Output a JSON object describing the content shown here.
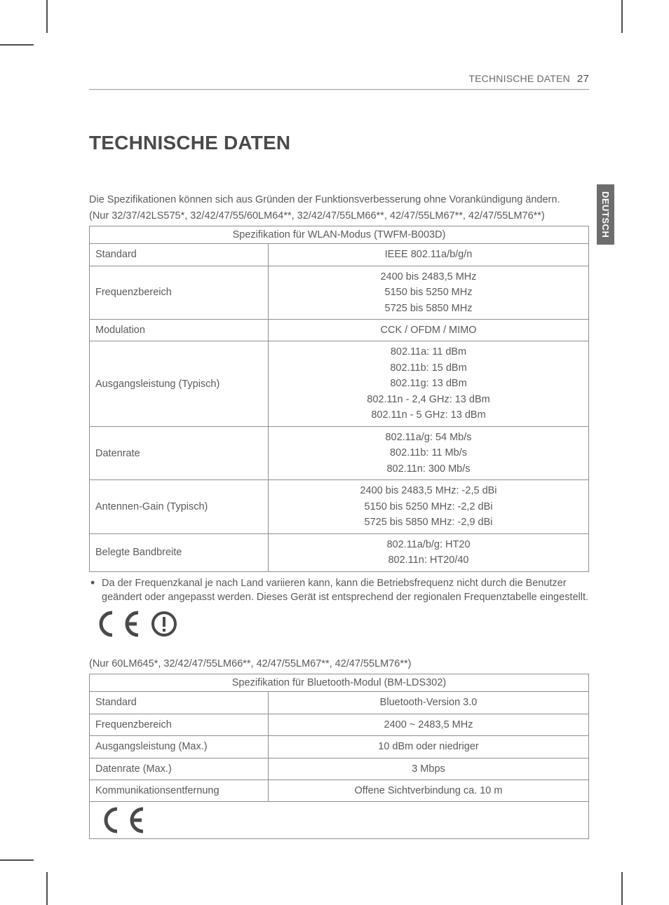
{
  "header": {
    "section": "TECHNISCHE DATEN",
    "page_number": "27"
  },
  "side_tab": "DEUTSCH",
  "title": "TECHNISCHE DATEN",
  "intro_line1": "Die Spezifikationen können sich aus Gründen der Funktionsverbesserung ohne Vorankündigung ändern.",
  "intro_line2": "(Nur 32/37/42LS575*, 32/42/47/55/60LM64**, 32/42/47/55LM66**, 42/47/55LM67**, 42/47/55LM76**)",
  "table1": {
    "caption": "Spezifikation für WLAN-Modus (TWFM-B003D)",
    "rows": [
      {
        "label": "Standard",
        "values": [
          "IEEE 802.11a/b/g/n"
        ]
      },
      {
        "label": "Frequenzbereich",
        "values": [
          "2400 bis 2483,5 MHz",
          "5150 bis 5250 MHz",
          "5725 bis 5850 MHz"
        ]
      },
      {
        "label": "Modulation",
        "values": [
          "CCK / OFDM / MIMO"
        ]
      },
      {
        "label": "Ausgangsleistung (Typisch)",
        "values": [
          "802.11a: 11 dBm",
          "802.11b: 15 dBm",
          "802.11g: 13 dBm",
          "802.11n - 2,4 GHz: 13 dBm",
          "802.11n - 5 GHz: 13 dBm"
        ]
      },
      {
        "label": "Datenrate",
        "values": [
          "802.11a/g: 54 Mb/s",
          "802.11b: 11 Mb/s",
          "802.11n: 300 Mb/s"
        ]
      },
      {
        "label": "Antennen-Gain (Typisch)",
        "values": [
          "2400 bis 2483,5 MHz: -2,5 dBi",
          "5150 bis 5250 MHz: -2,2 dBi",
          "5725 bis 5850 MHz: -2,9 dBi"
        ]
      },
      {
        "label": "Belegte Bandbreite",
        "values": [
          "802.11a/b/g: HT20",
          "802.11n: HT20/40"
        ]
      }
    ]
  },
  "note1": "Da der Frequenzkanal je nach Land variieren kann, kann die Betriebsfrequenz nicht durch die Benutzer geändert oder angepasst werden. Dieses Gerät ist entsprechend der regionalen Frequenztabelle eingestellt.",
  "intro2": "(Nur 60LM645*, 32/42/47/55LM66**, 42/47/55LM67**, 42/47/55LM76**)",
  "table2": {
    "caption": "Spezifikation für Bluetooth-Modul (BM-LDS302)",
    "rows": [
      {
        "label": "Standard",
        "values": [
          "Bluetooth-Version 3.0"
        ]
      },
      {
        "label": "Frequenzbereich",
        "values": [
          "2400 ~ 2483,5 MHz"
        ]
      },
      {
        "label": "Ausgangsleistung (Max.)",
        "values": [
          "10 dBm oder niedriger"
        ]
      },
      {
        "label": "Datenrate (Max.)",
        "values": [
          "3 Mbps"
        ]
      },
      {
        "label": "Kommunikationsentfernung",
        "values": [
          "Offene Sichtverbindung ca. 10 m"
        ]
      }
    ]
  },
  "colors": {
    "text": "#5a5a5a",
    "heading": "#4a4a4a",
    "border": "#8f8f8f",
    "rule": "#9a9a9a",
    "tab_bg": "#6d6d6d",
    "crop": "#4d4d4d"
  }
}
